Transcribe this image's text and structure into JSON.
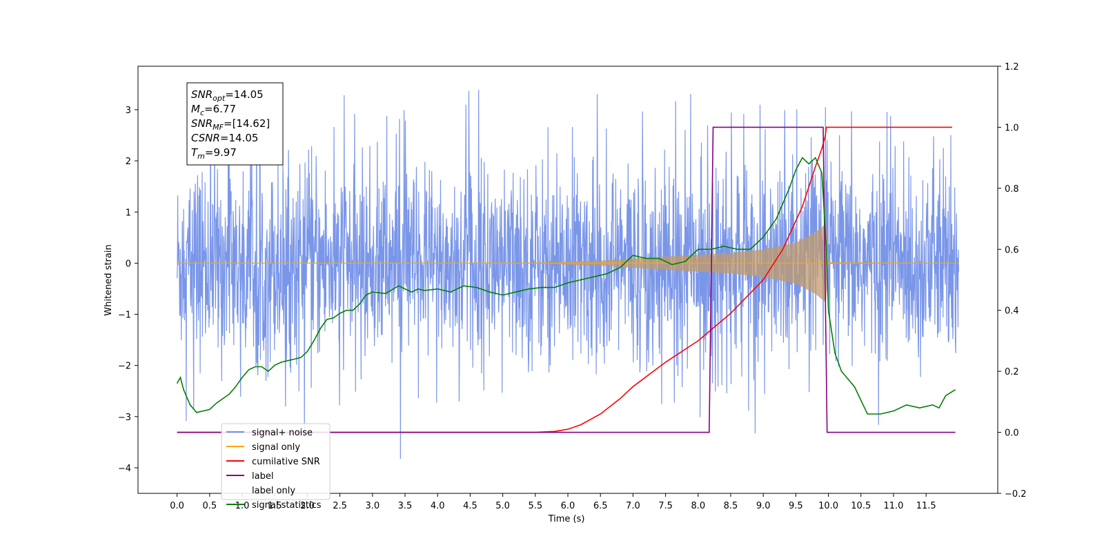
{
  "chart_data": {
    "type": "line",
    "title": "",
    "xlabel": "Time (s)",
    "ylabel": "Whitened strain",
    "xlim": [
      -0.6,
      12.6
    ],
    "ylim": [
      -4.5,
      3.85
    ],
    "y2lim": [
      -0.2,
      1.2
    ],
    "grid": false,
    "legend_placement": "lower-left",
    "x_ticks": [
      "0.0",
      "0.5",
      "1.0",
      "1.5",
      "2.0",
      "2.5",
      "3.0",
      "3.5",
      "4.0",
      "4.5",
      "5.0",
      "5.5",
      "6.0",
      "6.5",
      "7.0",
      "7.5",
      "8.0",
      "8.5",
      "9.0",
      "9.5",
      "10.0",
      "10.5",
      "11.0",
      "11.5"
    ],
    "y_ticks": [
      "3",
      "2",
      "1",
      "0",
      "−1",
      "−2",
      "−3",
      "−4"
    ],
    "y2_ticks": [
      "1.2",
      "1.0",
      "0.8",
      "0.6",
      "0.4",
      "0.2",
      "0.0",
      "−0.2"
    ],
    "annotation": {
      "lines": [
        {
          "base": "SNR",
          "sub": "opt",
          "value": "=14.05"
        },
        {
          "base": "M",
          "sub": "c",
          "value": "=6.77"
        },
        {
          "base": "SNR",
          "sub": "MF",
          "value": "=[14.62]"
        },
        {
          "base": "CSNR",
          "sub": "",
          "value": "=14.05"
        },
        {
          "base": "T",
          "sub": "m",
          "value": "=9.97"
        }
      ]
    },
    "series": [
      {
        "name": "signal+ noise",
        "color": "#6f8de6",
        "axis": "left",
        "kind": "noise",
        "t_start": 0.0,
        "t_end": 12.0,
        "noise_sigma": 0.95,
        "spikes_up_max": 3.5,
        "spikes_down_min": -4.1
      },
      {
        "name": "signal only",
        "color": "#ffa500",
        "axis": "left",
        "kind": "chirp",
        "t_start": 0.0,
        "t_end": 12.0,
        "merger_time": 9.97,
        "peak_amplitude": 0.78,
        "envelope": [
          [
            0.0,
            0.0
          ],
          [
            5.5,
            0.01
          ],
          [
            6.5,
            0.05
          ],
          [
            7.5,
            0.13
          ],
          [
            8.5,
            0.2
          ],
          [
            9.0,
            0.27
          ],
          [
            9.5,
            0.4
          ],
          [
            9.8,
            0.6
          ],
          [
            9.97,
            0.78
          ],
          [
            10.0,
            0.02
          ],
          [
            12.0,
            0.0
          ]
        ]
      },
      {
        "name": "cumilative SNR",
        "color": "#ff0000",
        "axis": "right",
        "x": [
          0.0,
          5.0,
          5.5,
          5.8,
          6.0,
          6.2,
          6.5,
          6.8,
          7.0,
          7.5,
          8.0,
          8.5,
          9.0,
          9.3,
          9.6,
          9.8,
          9.9,
          9.95,
          9.97,
          10.0,
          11.0,
          11.9
        ],
        "values": [
          0.0,
          0.0,
          0.0,
          0.003,
          0.01,
          0.025,
          0.06,
          0.11,
          0.15,
          0.23,
          0.3,
          0.39,
          0.5,
          0.6,
          0.74,
          0.87,
          0.93,
          0.97,
          1.0,
          1.0,
          1.0,
          1.0
        ]
      },
      {
        "name": "label",
        "color": "#800080",
        "axis": "right",
        "x": [
          0.0,
          8.17,
          8.23,
          9.92,
          9.98,
          11.95
        ],
        "values": [
          0.0,
          0.0,
          1.0,
          1.0,
          0.0,
          0.0
        ]
      },
      {
        "name": "label only",
        "color": "#ffffff",
        "axis": "right",
        "kind": "legend-only"
      },
      {
        "name": "signal statistics",
        "color": "#008000",
        "axis": "right",
        "x": [
          0.0,
          0.05,
          0.1,
          0.2,
          0.3,
          0.4,
          0.5,
          0.6,
          0.7,
          0.8,
          0.9,
          1.0,
          1.1,
          1.2,
          1.3,
          1.4,
          1.5,
          1.6,
          1.7,
          1.8,
          1.9,
          2.0,
          2.1,
          2.2,
          2.3,
          2.4,
          2.5,
          2.6,
          2.7,
          2.8,
          2.9,
          3.0,
          3.2,
          3.4,
          3.6,
          3.7,
          3.8,
          4.0,
          4.2,
          4.4,
          4.6,
          4.8,
          5.0,
          5.2,
          5.4,
          5.6,
          5.8,
          6.0,
          6.2,
          6.4,
          6.6,
          6.8,
          6.9,
          7.0,
          7.2,
          7.4,
          7.6,
          7.8,
          8.0,
          8.2,
          8.4,
          8.6,
          8.8,
          9.0,
          9.2,
          9.4,
          9.5,
          9.6,
          9.7,
          9.8,
          9.9,
          9.97,
          10.0,
          10.1,
          10.2,
          10.4,
          10.6,
          10.8,
          11.0,
          11.2,
          11.4,
          11.6,
          11.7,
          11.8,
          11.95
        ],
        "values": [
          0.16,
          0.18,
          0.14,
          0.09,
          0.065,
          0.07,
          0.075,
          0.095,
          0.11,
          0.125,
          0.15,
          0.18,
          0.205,
          0.215,
          0.215,
          0.2,
          0.22,
          0.23,
          0.235,
          0.24,
          0.245,
          0.265,
          0.3,
          0.34,
          0.37,
          0.375,
          0.39,
          0.4,
          0.4,
          0.42,
          0.45,
          0.46,
          0.455,
          0.48,
          0.46,
          0.47,
          0.465,
          0.47,
          0.46,
          0.48,
          0.475,
          0.46,
          0.45,
          0.46,
          0.47,
          0.475,
          0.475,
          0.49,
          0.5,
          0.51,
          0.52,
          0.54,
          0.56,
          0.58,
          0.57,
          0.57,
          0.55,
          0.56,
          0.6,
          0.6,
          0.61,
          0.6,
          0.6,
          0.64,
          0.7,
          0.8,
          0.86,
          0.9,
          0.88,
          0.9,
          0.85,
          0.6,
          0.4,
          0.26,
          0.2,
          0.15,
          0.06,
          0.06,
          0.07,
          0.09,
          0.08,
          0.09,
          0.08,
          0.12,
          0.14
        ]
      }
    ]
  }
}
